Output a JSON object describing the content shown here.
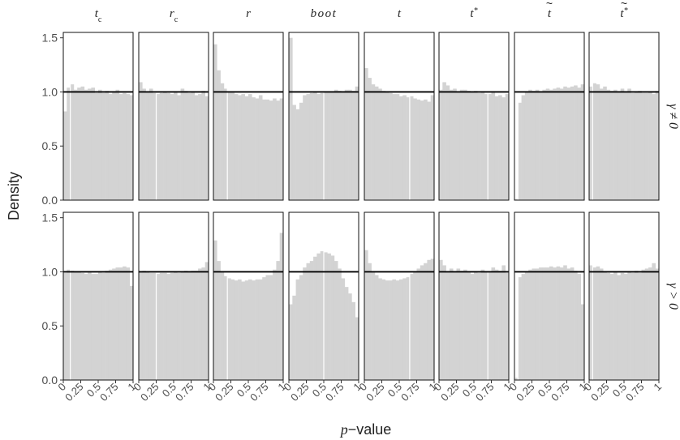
{
  "chart_data": {
    "type": "bar",
    "subtype": "faceted-histogram",
    "xlabel_prefix": "p",
    "xlabel_suffix": "−value",
    "ylabel": "Density",
    "xlim": [
      0,
      1
    ],
    "ylim": [
      0,
      1.55
    ],
    "x_ticks": [
      0,
      0.25,
      0.5,
      0.75,
      1
    ],
    "x_tick_labels": [
      "0",
      "0.25",
      "0.5",
      "0.75",
      "1"
    ],
    "y_ticks": [
      0,
      0.5,
      1,
      1.5
    ],
    "y_tick_labels": [
      "0.0",
      "0.5",
      "1.0",
      "1.5"
    ],
    "reference_line": 1.0,
    "bins": 20,
    "bar_color": "#d3d3d3",
    "columns": [
      {
        "key": "tc",
        "base": "t",
        "sub": "c"
      },
      {
        "key": "rc",
        "base": "r",
        "sub": "c"
      },
      {
        "key": "r",
        "base": "r"
      },
      {
        "key": "boot",
        "base": "boot"
      },
      {
        "key": "t",
        "base": "t"
      },
      {
        "key": "tstar",
        "base": "t",
        "sup": "*"
      },
      {
        "key": "ttilde",
        "base": "t",
        "tilde": true
      },
      {
        "key": "ttildestar",
        "base": "t",
        "tilde": true,
        "sup": "*"
      }
    ],
    "rows": [
      {
        "key": "neq",
        "strip_label": "γ ≠ 0"
      },
      {
        "key": "gt",
        "strip_label": "γ > 0"
      }
    ],
    "panels": {
      "neq": {
        "tc": [
          0.82,
          1.04,
          1.07,
          1.02,
          1.04,
          1.05,
          1.02,
          1.03,
          1.04,
          0.99,
          1.02,
          0.99,
          1.01,
          0.98,
          1.0,
          1.02,
          0.98,
          0.99,
          0.98,
          0.97
        ],
        "rc": [
          1.09,
          1.03,
          1.0,
          1.03,
          0.99,
          0.98,
          0.99,
          1.0,
          0.99,
          0.98,
          1.0,
          0.97,
          1.03,
          1.01,
          0.99,
          1.0,
          0.97,
          0.98,
          1.01,
          0.96
        ],
        "r": [
          1.44,
          1.2,
          1.08,
          1.03,
          1.0,
          1.0,
          0.98,
          0.97,
          0.98,
          0.96,
          0.98,
          0.95,
          0.94,
          0.97,
          0.93,
          0.93,
          0.92,
          0.94,
          0.92,
          0.94
        ],
        "boot": [
          1.5,
          0.88,
          0.84,
          0.9,
          0.97,
          0.98,
          0.99,
          1.0,
          0.98,
          0.99,
          1.0,
          1.0,
          1.0,
          1.02,
          1.01,
          1.0,
          1.02,
          1.02,
          1.01,
          1.05
        ],
        "t": [
          1.22,
          1.13,
          1.07,
          1.05,
          1.03,
          1.01,
          1.0,
          0.99,
          0.98,
          0.98,
          0.96,
          0.97,
          0.95,
          0.96,
          0.94,
          0.93,
          0.92,
          0.93,
          0.91,
          0.97
        ],
        "tstar": [
          1.02,
          1.09,
          1.06,
          1.02,
          1.03,
          1.0,
          1.02,
          1.02,
          1.01,
          1.0,
          1.01,
          0.99,
          1.0,
          0.98,
          0.98,
          1.0,
          0.96,
          0.97,
          0.95,
          0.98
        ],
        "ttilde": [
          0.01,
          0.9,
          0.97,
          1.0,
          1.02,
          1.01,
          1.02,
          1.0,
          1.02,
          1.03,
          1.02,
          1.03,
          1.04,
          1.03,
          1.05,
          1.04,
          1.05,
          1.06,
          1.04,
          1.07
        ],
        "ttildestar": [
          1.05,
          1.08,
          1.07,
          1.03,
          1.05,
          1.02,
          1.01,
          1.02,
          1.0,
          1.03,
          1.0,
          1.03,
          0.99,
          1.0,
          1.01,
          0.99,
          0.99,
          1.0,
          0.98,
          1.01
        ]
      },
      "gt": {
        "tc": [
          0.99,
          1.02,
          1.01,
          1.0,
          1.0,
          0.99,
          0.98,
          1.0,
          0.98,
          0.98,
          1.0,
          0.99,
          1.01,
          1.02,
          1.03,
          1.04,
          1.04,
          1.05,
          1.04,
          0.87
        ],
        "rc": [
          1.0,
          1.01,
          1.0,
          0.99,
          0.99,
          0.98,
          0.99,
          0.99,
          0.98,
          0.99,
          1.0,
          0.99,
          1.0,
          1.01,
          1.0,
          1.01,
          1.01,
          1.03,
          1.04,
          1.09
        ],
        "r": [
          1.29,
          1.1,
          1.0,
          0.96,
          0.94,
          0.93,
          0.92,
          0.93,
          0.91,
          0.92,
          0.93,
          0.92,
          0.93,
          0.93,
          0.95,
          0.97,
          0.97,
          1.02,
          1.1,
          1.36
        ],
        "boot": [
          0.7,
          0.78,
          0.93,
          0.97,
          1.04,
          1.08,
          1.1,
          1.14,
          1.17,
          1.19,
          1.18,
          1.17,
          1.15,
          1.1,
          1.03,
          0.94,
          0.86,
          0.8,
          0.72,
          0.58
        ],
        "t": [
          1.2,
          1.08,
          1.0,
          0.97,
          0.94,
          0.93,
          0.92,
          0.92,
          0.93,
          0.92,
          0.93,
          0.94,
          0.95,
          0.98,
          1.0,
          1.03,
          1.06,
          1.08,
          1.11,
          1.12
        ],
        "tstar": [
          1.11,
          1.06,
          1.0,
          1.03,
          1.0,
          1.03,
          1.01,
          1.02,
          1.0,
          0.98,
          1.0,
          0.99,
          1.02,
          1.0,
          1.0,
          1.04,
          1.02,
          1.01,
          1.06,
          0.99
        ],
        "ttilde": [
          0.02,
          0.95,
          0.98,
          1.0,
          1.02,
          1.03,
          1.03,
          1.04,
          1.04,
          1.04,
          1.05,
          1.04,
          1.05,
          1.04,
          1.06,
          1.03,
          1.04,
          1.01,
          0.98,
          0.7
        ],
        "ttildestar": [
          1.06,
          1.04,
          1.05,
          1.03,
          1.0,
          0.99,
          0.98,
          1.0,
          0.97,
          0.99,
          0.98,
          1.0,
          0.99,
          1.01,
          0.99,
          1.02,
          1.03,
          1.04,
          1.08,
          1.03
        ]
      }
    }
  }
}
